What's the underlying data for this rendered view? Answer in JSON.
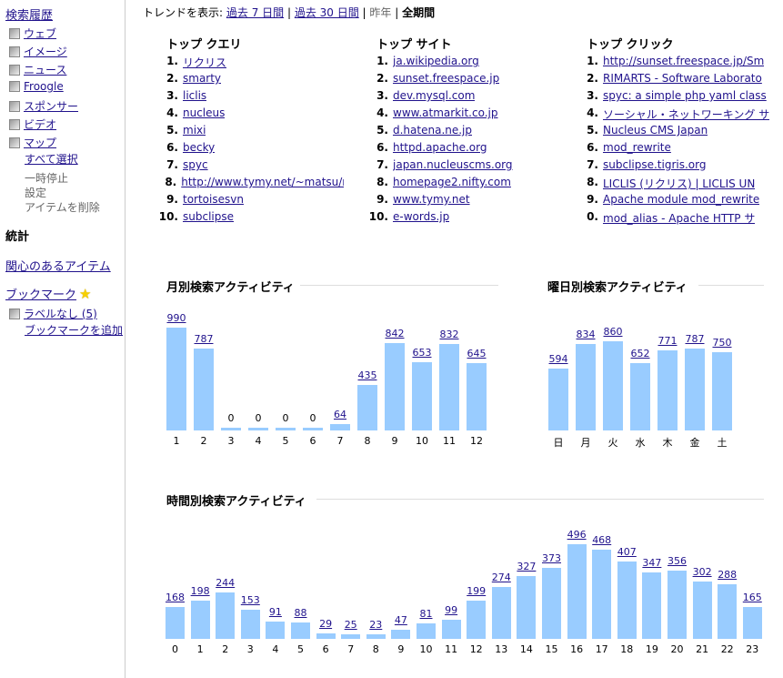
{
  "sidebar": {
    "history_title": "検索履歴",
    "items": [
      {
        "label": "ウェブ"
      },
      {
        "label": "イメージ"
      },
      {
        "label": "ニュース"
      },
      {
        "label": "Froogle"
      },
      {
        "label": "スポンサー"
      },
      {
        "label": "ビデオ"
      },
      {
        "label": "マップ"
      }
    ],
    "select_all": "すべて選択",
    "pause": "一時停止",
    "settings": "設定",
    "delete_items": "アイテムを削除",
    "stats": "統計",
    "interesting_items": "関心のあるアイテム",
    "bookmarks": "ブックマーク",
    "bookmark_icon": "star-icon",
    "unlabeled": "ラベルなし (5)",
    "add_bookmark": "ブックマークを追加"
  },
  "trend": {
    "label": "トレンドを表示:",
    "options": [
      "過去 7 日間",
      "過去 30 日間",
      "昨年",
      "全期間"
    ],
    "current": "全期間"
  },
  "top_queries": {
    "title": "トップ クエリ",
    "items": [
      "リクリス",
      "smarty",
      "liclis",
      "nucleus",
      "mixi",
      "becky",
      "spyc",
      "http://www.tymy.net/~matsu/nu",
      "tortoisesvn",
      "subclipse"
    ]
  },
  "top_sites": {
    "title": "トップ サイト",
    "items": [
      "ja.wikipedia.org",
      "sunset.freespace.jp",
      "dev.mysql.com",
      "www.atmarkit.co.jp",
      "d.hatena.ne.jp",
      "httpd.apache.org",
      "japan.nucleuscms.org",
      "homepage2.nifty.com",
      "www.tymy.net",
      "e-words.jp"
    ]
  },
  "top_clicks": {
    "title": "トップ クリック",
    "items": [
      "http://sunset.freespace.jp/Sm",
      "RIMARTS - Software Laborato",
      "spyc: a simple php yaml class",
      "ソーシャル・ネットワーキング サ",
      "Nucleus CMS Japan",
      "mod_rewrite",
      "subclipse.tigris.org",
      "LICLIS (リクリス) | LICLIS UN",
      "Apache module mod_rewrite",
      "mod_alias - Apache HTTP サ"
    ]
  },
  "colors": {
    "bar": "#99ccff",
    "link": "#20128c"
  },
  "chart_data": [
    {
      "type": "bar",
      "title": "月別検索アクティビティ",
      "categories": [
        "1",
        "2",
        "3",
        "4",
        "5",
        "6",
        "7",
        "8",
        "9",
        "10",
        "11",
        "12"
      ],
      "values": [
        990,
        787,
        0,
        0,
        0,
        0,
        64,
        435,
        842,
        653,
        832,
        645
      ]
    },
    {
      "type": "bar",
      "title": "曜日別検索アクティビティ",
      "categories": [
        "日",
        "月",
        "火",
        "水",
        "木",
        "金",
        "土"
      ],
      "values": [
        594,
        834,
        860,
        652,
        771,
        787,
        750
      ]
    },
    {
      "type": "bar",
      "title": "時間別検索アクティビティ",
      "categories": [
        "0",
        "1",
        "2",
        "3",
        "4",
        "5",
        "6",
        "7",
        "8",
        "9",
        "10",
        "11",
        "12",
        "13",
        "14",
        "15",
        "16",
        "17",
        "18",
        "19",
        "20",
        "21",
        "22",
        "23"
      ],
      "values": [
        168,
        198,
        244,
        153,
        91,
        88,
        29,
        25,
        23,
        47,
        81,
        99,
        199,
        274,
        327,
        373,
        496,
        468,
        407,
        347,
        356,
        302,
        288,
        165
      ]
    }
  ]
}
